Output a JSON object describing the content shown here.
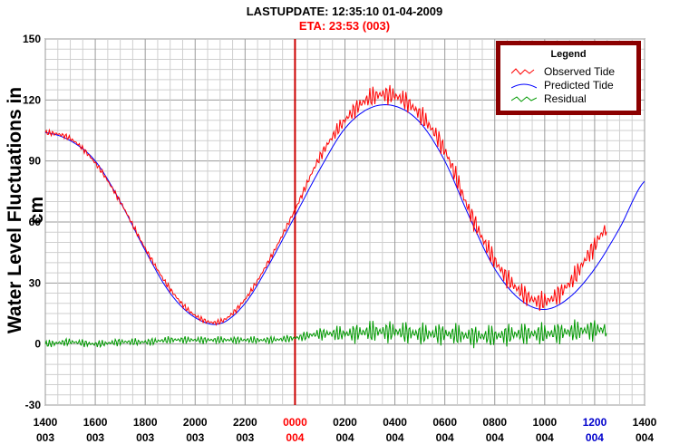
{
  "header": {
    "update_line": "LASTUPDATE: 12:35:10  01-04-2009",
    "eta_line": "ETA: 23:53 (003)"
  },
  "chart_data": {
    "type": "line",
    "ylabel": "Water Level Fluctuations in cm",
    "ylim": [
      -30,
      150
    ],
    "y_ticks": [
      "150",
      "120",
      "90",
      "60",
      "30",
      "0",
      "-30"
    ],
    "xlim_hours": [
      0,
      24
    ],
    "x_ticks": [
      {
        "hour": 0,
        "time": "1400",
        "day": "003",
        "color": "#000000"
      },
      {
        "hour": 2,
        "time": "1600",
        "day": "003",
        "color": "#000000"
      },
      {
        "hour": 4,
        "time": "1800",
        "day": "003",
        "color": "#000000"
      },
      {
        "hour": 6,
        "time": "2000",
        "day": "003",
        "color": "#000000"
      },
      {
        "hour": 8,
        "time": "2200",
        "day": "003",
        "color": "#000000"
      },
      {
        "hour": 10,
        "time": "0000",
        "day": "004",
        "color": "#ff0000"
      },
      {
        "hour": 12,
        "time": "0200",
        "day": "004",
        "color": "#000000"
      },
      {
        "hour": 14,
        "time": "0400",
        "day": "004",
        "color": "#000000"
      },
      {
        "hour": 16,
        "time": "0600",
        "day": "004",
        "color": "#000000"
      },
      {
        "hour": 18,
        "time": "0800",
        "day": "004",
        "color": "#000000"
      },
      {
        "hour": 20,
        "time": "1000",
        "day": "004",
        "color": "#000000"
      },
      {
        "hour": 22,
        "time": "1200",
        "day": "004",
        "color": "#0000cc"
      },
      {
        "hour": 24,
        "time": "1400",
        "day": "004",
        "color": "#000000"
      }
    ],
    "grid": true,
    "marker_line_hour": 10,
    "marker_color": "#cc0000",
    "legend": {
      "title": "Legend",
      "placement": "top-right",
      "entries": [
        {
          "name": "Observed Tide",
          "color": "#ff0000"
        },
        {
          "name": "Predicted Tide",
          "color": "#0000ff"
        },
        {
          "name": "Residual",
          "color": "#009900"
        }
      ]
    },
    "series": [
      {
        "name": "Predicted Tide",
        "color": "#0000ff",
        "x_hours": [
          0,
          1,
          2,
          3,
          4,
          5,
          6,
          7,
          8,
          9,
          10,
          11,
          12,
          13,
          14,
          15,
          16,
          17,
          18,
          19,
          20,
          21,
          22,
          23,
          24
        ],
        "values": [
          104,
          100,
          90,
          70,
          46,
          25,
          13,
          10,
          20,
          40,
          63,
          86,
          106,
          116,
          117,
          109,
          90,
          62,
          37,
          22,
          17,
          23,
          37,
          57,
          80
        ]
      },
      {
        "name": "Observed Tide",
        "color": "#ff0000",
        "x_hours": [
          0,
          1,
          2,
          3,
          4,
          5,
          6,
          7,
          8,
          9,
          10,
          11,
          12,
          13,
          14,
          15,
          16,
          17,
          18,
          19,
          20,
          21,
          22,
          22.5
        ],
        "values": [
          104,
          101,
          89,
          70,
          47,
          27,
          14,
          11,
          22,
          42,
          66,
          92,
          110,
          121,
          122,
          113,
          95,
          65,
          41,
          26,
          21,
          30,
          48,
          57
        ]
      },
      {
        "name": "Residual",
        "color": "#009900",
        "x_hours": [
          0,
          1,
          2,
          3,
          4,
          5,
          6,
          7,
          8,
          9,
          10,
          11,
          12,
          13,
          14,
          15,
          16,
          17,
          18,
          19,
          20,
          21,
          22,
          22.5
        ],
        "values": [
          0,
          1,
          0,
          1,
          1,
          2,
          2,
          2,
          2,
          2,
          3,
          5,
          5,
          6,
          6,
          5,
          5,
          4,
          4,
          5,
          5,
          6,
          7,
          7
        ]
      }
    ]
  }
}
